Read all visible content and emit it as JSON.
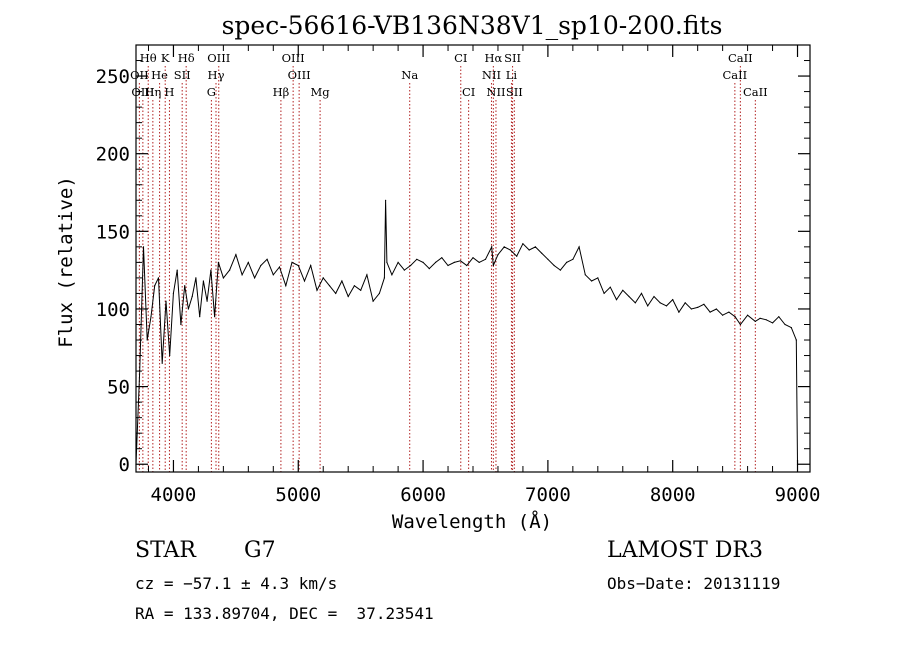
{
  "chart_data": {
    "type": "line",
    "title": "spec-56616-VB136N38V1_sp10-200.fits",
    "xlabel": "Wavelength (Å)",
    "ylabel": "Flux (relative)",
    "xlim": [
      3700,
      9100
    ],
    "ylim": [
      -5,
      270
    ],
    "xticks": [
      4000,
      5000,
      6000,
      7000,
      8000,
      9000
    ],
    "xtick_labels": [
      "4000",
      "5000",
      "6000",
      "7000",
      "8000",
      "9000"
    ],
    "yticks": [
      0,
      50,
      100,
      150,
      200,
      250
    ],
    "ytick_labels": [
      "0",
      "50",
      "100",
      "150",
      "200",
      "250"
    ],
    "series": [
      {
        "name": "spectrum",
        "x": [
          3700,
          3730,
          3760,
          3790,
          3820,
          3850,
          3880,
          3910,
          3940,
          3970,
          4000,
          4030,
          4060,
          4090,
          4120,
          4150,
          4180,
          4210,
          4240,
          4270,
          4300,
          4330,
          4360,
          4400,
          4450,
          4500,
          4550,
          4600,
          4650,
          4700,
          4750,
          4800,
          4850,
          4900,
          4950,
          5000,
          5050,
          5100,
          5150,
          5200,
          5250,
          5300,
          5350,
          5400,
          5450,
          5500,
          5550,
          5600,
          5650,
          5690,
          5700,
          5710,
          5750,
          5800,
          5850,
          5900,
          5950,
          6000,
          6050,
          6100,
          6150,
          6200,
          6250,
          6300,
          6350,
          6400,
          6450,
          6500,
          6550,
          6563,
          6600,
          6650,
          6700,
          6750,
          6800,
          6850,
          6900,
          6950,
          7000,
          7050,
          7100,
          7150,
          7200,
          7250,
          7300,
          7350,
          7400,
          7450,
          7500,
          7550,
          7600,
          7650,
          7700,
          7750,
          7800,
          7850,
          7900,
          7950,
          8000,
          8050,
          8100,
          8150,
          8200,
          8250,
          8300,
          8350,
          8400,
          8450,
          8500,
          8542,
          8600,
          8662,
          8700,
          8750,
          8800,
          8850,
          8900,
          8950,
          8990,
          9000
        ],
        "y": [
          0,
          60,
          140,
          80,
          95,
          115,
          120,
          65,
          105,
          70,
          110,
          125,
          90,
          115,
          100,
          108,
          120,
          95,
          118,
          105,
          125,
          95,
          130,
          120,
          125,
          135,
          122,
          130,
          120,
          128,
          132,
          122,
          127,
          115,
          130,
          128,
          118,
          128,
          112,
          120,
          115,
          110,
          118,
          108,
          115,
          112,
          122,
          105,
          110,
          120,
          170,
          130,
          122,
          130,
          125,
          128,
          132,
          130,
          126,
          130,
          133,
          128,
          130,
          131,
          128,
          133,
          130,
          132,
          140,
          128,
          135,
          140,
          138,
          134,
          142,
          138,
          140,
          136,
          132,
          128,
          125,
          130,
          132,
          140,
          122,
          118,
          120,
          110,
          114,
          106,
          112,
          108,
          104,
          110,
          102,
          108,
          104,
          102,
          106,
          98,
          104,
          100,
          101,
          103,
          98,
          100,
          96,
          98,
          95,
          90,
          96,
          92,
          94,
          93,
          91,
          95,
          90,
          88,
          80,
          0
        ]
      }
    ],
    "line_markers": [
      {
        "name": "Hθ",
        "wavelength": 3798,
        "row": 1
      },
      {
        "name": "K",
        "wavelength": 3934,
        "row": 1
      },
      {
        "name": "Hδ",
        "wavelength": 4102,
        "row": 1
      },
      {
        "name": "OIII",
        "wavelength": 4363,
        "row": 1
      },
      {
        "name": "OIII",
        "wavelength": 4959,
        "row": 1
      },
      {
        "name": "CI",
        "wavelength": 6302,
        "row": 1
      },
      {
        "name": "Hα",
        "wavelength": 6563,
        "row": 1
      },
      {
        "name": "SII",
        "wavelength": 6717,
        "row": 1
      },
      {
        "name": "CaII",
        "wavelength": 8542,
        "row": 1
      },
      {
        "name": "OII",
        "wavelength": 3727,
        "row": 2
      },
      {
        "name": "He",
        "wavelength": 3889,
        "row": 2
      },
      {
        "name": "SII",
        "wavelength": 4070,
        "row": 2
      },
      {
        "name": "Hγ",
        "wavelength": 4341,
        "row": 2
      },
      {
        "name": "OIII",
        "wavelength": 5007,
        "row": 2
      },
      {
        "name": "Na",
        "wavelength": 5893,
        "row": 2
      },
      {
        "name": "NII",
        "wavelength": 6548,
        "row": 2
      },
      {
        "name": "Li",
        "wavelength": 6708,
        "row": 2
      },
      {
        "name": "CaII",
        "wavelength": 8498,
        "row": 2
      },
      {
        "name": "OIII",
        "wavelength": 3755,
        "row": 3
      },
      {
        "name": "Hη",
        "wavelength": 3835,
        "row": 3
      },
      {
        "name": "H",
        "wavelength": 3968,
        "row": 3
      },
      {
        "name": "G",
        "wavelength": 4304,
        "row": 3
      },
      {
        "name": "Hβ",
        "wavelength": 4861,
        "row": 3
      },
      {
        "name": "Mg",
        "wavelength": 5175,
        "row": 3
      },
      {
        "name": "CI",
        "wavelength": 6365,
        "row": 3
      },
      {
        "name": "NII",
        "wavelength": 6584,
        "row": 3
      },
      {
        "name": "SII",
        "wavelength": 6731,
        "row": 3
      },
      {
        "name": "CaII",
        "wavelength": 8662,
        "row": 3
      }
    ]
  },
  "info": {
    "object_class": "STAR",
    "subclass": "G7",
    "survey": "LAMOST DR3",
    "redshift": "cz = −57.1 ± 4.3 km/s",
    "obs_date": "Obs−Date: 20131119",
    "coords": "RA = 133.89704, DEC =  37.23541"
  }
}
